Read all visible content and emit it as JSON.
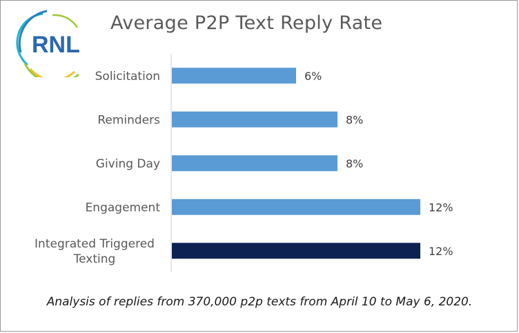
{
  "logo": {
    "text": "RNL",
    "colors": [
      "#2a7fc1",
      "#9ec93a",
      "#f2c12e",
      "#23b4c9"
    ]
  },
  "chart_data": {
    "type": "bar",
    "orientation": "horizontal",
    "title": "Average P2P Text Reply Rate",
    "categories": [
      "Solicitation",
      "Reminders",
      "Giving Day",
      "Engagement",
      "Integrated Triggered Texting"
    ],
    "category_lines": [
      [
        "Solicitation"
      ],
      [
        "Reminders"
      ],
      [
        "Giving Day"
      ],
      [
        "Engagement"
      ],
      [
        "Integrated Triggered",
        "Texting"
      ]
    ],
    "values": [
      6,
      8,
      8,
      12,
      12
    ],
    "value_labels": [
      "6%",
      "8%",
      "8%",
      "12%",
      "12%"
    ],
    "bar_colors": [
      "#5b9bd5",
      "#5b9bd5",
      "#5b9bd5",
      "#5b9bd5",
      "#0e2153"
    ],
    "xlim": [
      0,
      14
    ],
    "grid": false,
    "legend": "none"
  },
  "caption": "Analysis of replies from 370,000 p2p texts from April 10 to May 6, 2020."
}
